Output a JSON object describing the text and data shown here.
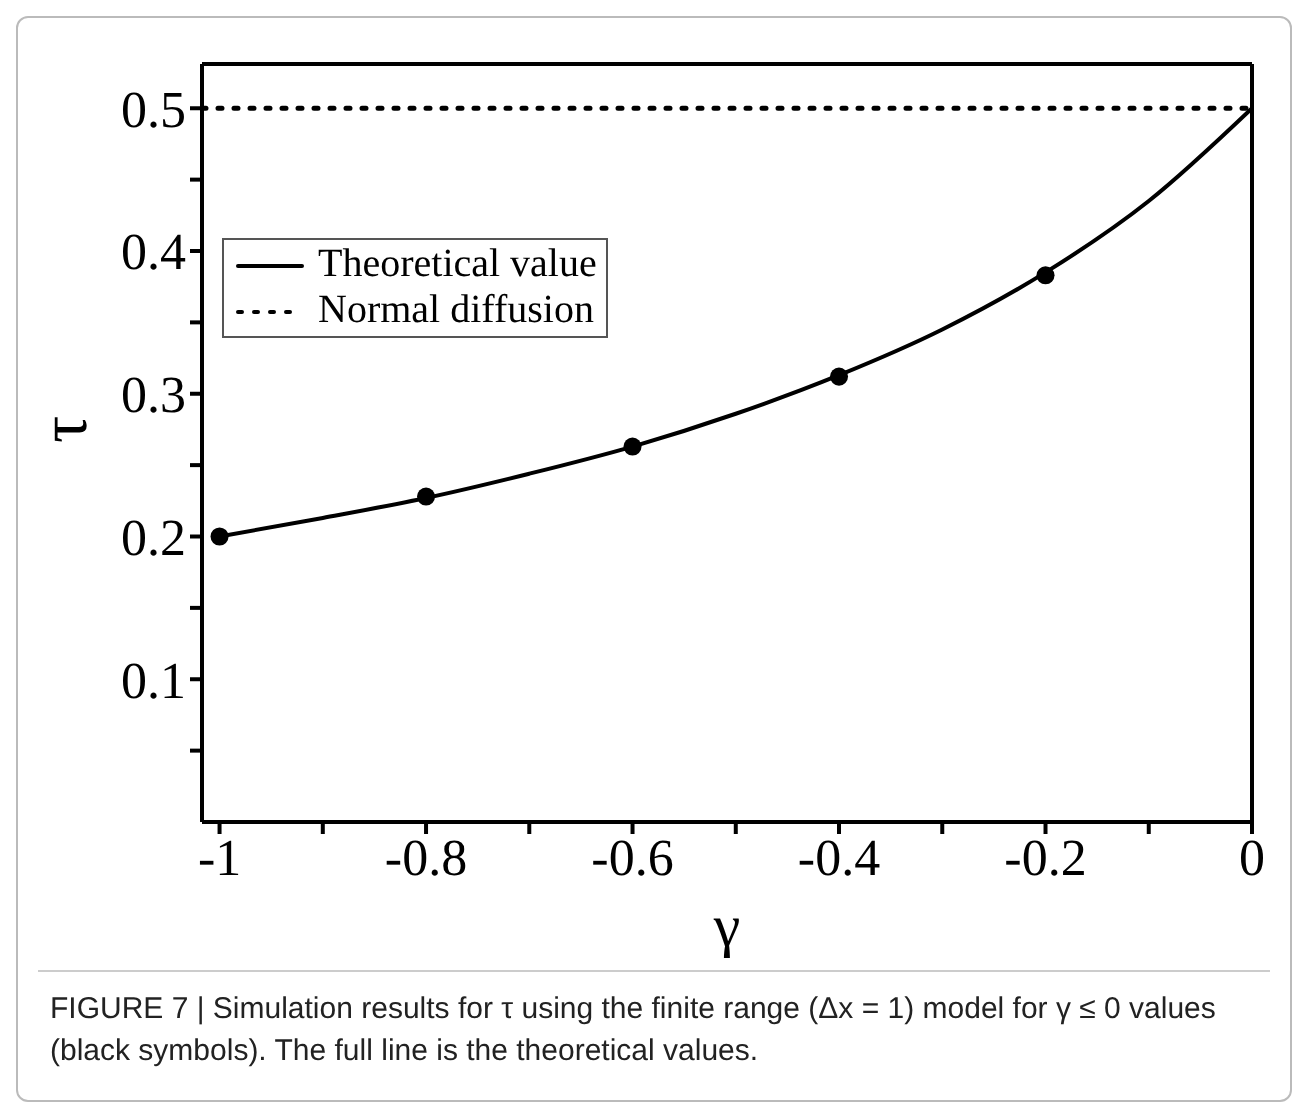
{
  "chart_data": {
    "type": "line",
    "xlabel": "γ",
    "ylabel": "τ",
    "xlim": [
      -1.017,
      0
    ],
    "ylim": [
      0,
      0.531
    ],
    "xticks": [
      -1,
      {
        "value": -0.9,
        "label": null
      },
      -0.8,
      {
        "value": -0.7,
        "label": null
      },
      -0.6,
      {
        "value": -0.5,
        "label": null
      },
      -0.4,
      {
        "value": -0.3,
        "label": null
      },
      -0.2,
      {
        "value": -0.1,
        "label": null
      },
      0
    ],
    "yticks": [
      {
        "value": 0.05,
        "label": null
      },
      0.1,
      {
        "value": 0.15,
        "label": null
      },
      0.2,
      {
        "value": 0.25,
        "label": null
      },
      0.3,
      {
        "value": 0.35,
        "label": null
      },
      0.4,
      {
        "value": 0.45,
        "label": null
      },
      0.5
    ],
    "series": [
      {
        "name": "Theoretical value",
        "type": "line",
        "color": "#000000",
        "line_style": "solid",
        "marker": "none",
        "x": [
          -1,
          -0.9,
          -0.8,
          -0.7,
          -0.6,
          -0.5,
          -0.4,
          -0.3,
          -0.2,
          -0.1,
          0
        ],
        "values": [
          0.2,
          0.213,
          0.227,
          0.244,
          0.263,
          0.286,
          0.313,
          0.345,
          0.385,
          0.435,
          0.5
        ]
      },
      {
        "type": "scatter",
        "color": "#000000",
        "marker": "circle",
        "x": [
          -1,
          -0.8,
          -0.6,
          -0.4,
          -0.2
        ],
        "values": [
          0.2,
          0.228,
          0.263,
          0.312,
          0.383
        ]
      }
    ],
    "ref_lines": [
      {
        "axis": "y",
        "value": 0.5,
        "label": "Normal diffusion",
        "line_style": "dotted",
        "color": "#000000"
      }
    ],
    "legend": "top left",
    "grid": false,
    "annotations": [
      "FIGURE 7 | Simulation results for τ using the finite range (Δx = 1) model for γ ≤ 0 values (black symbols). The full line is the theoretical values."
    ]
  }
}
